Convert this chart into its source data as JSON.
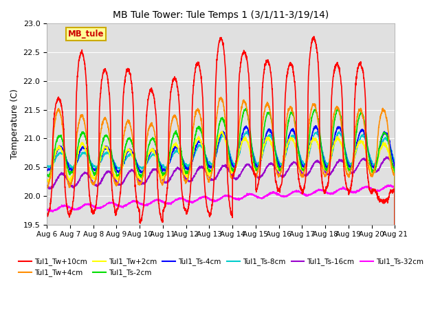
{
  "title": "MB Tule Tower: Tule Temps 1 (3/1/11-3/19/14)",
  "ylabel": "Temperature (C)",
  "ylim": [
    19.5,
    23.0
  ],
  "background_color": "#ffffff",
  "plot_bg_color": "#e0e0e0",
  "x_tick_labels": [
    "Aug 6",
    "Aug 7",
    "Aug 8",
    "Aug 9",
    "Aug 10",
    "Aug 11",
    "Aug 12",
    "Aug 13",
    "Aug 14",
    "Aug 15",
    "Aug 16",
    "Aug 17",
    "Aug 18",
    "Aug 19",
    "Aug 20",
    "Aug 21"
  ],
  "series_order": [
    "Tul1_Tw+10cm",
    "Tul1_Tw+4cm",
    "Tul1_Tw+2cm",
    "Tul1_Ts-2cm",
    "Tul1_Ts-4cm",
    "Tul1_Ts-8cm",
    "Tul1_Ts-16cm",
    "Tul1_Ts-32cm"
  ],
  "series": {
    "Tul1_Tw+10cm": {
      "color": "#ff0000",
      "lw": 1.2
    },
    "Tul1_Tw+4cm": {
      "color": "#ff8c00",
      "lw": 1.2
    },
    "Tul1_Tw+2cm": {
      "color": "#ffff00",
      "lw": 1.2
    },
    "Tul1_Ts-2cm": {
      "color": "#00dd00",
      "lw": 1.2
    },
    "Tul1_Ts-4cm": {
      "color": "#0000ff",
      "lw": 1.2
    },
    "Tul1_Ts-8cm": {
      "color": "#00cccc",
      "lw": 1.2
    },
    "Tul1_Ts-16cm": {
      "color": "#9900cc",
      "lw": 1.2
    },
    "Tul1_Ts-32cm": {
      "color": "#ff00ff",
      "lw": 1.2
    }
  },
  "annotation_text": "MB_tule",
  "annotation_color": "#cc0000",
  "annotation_bg": "#ffff99",
  "annotation_border": "#ccaa00"
}
